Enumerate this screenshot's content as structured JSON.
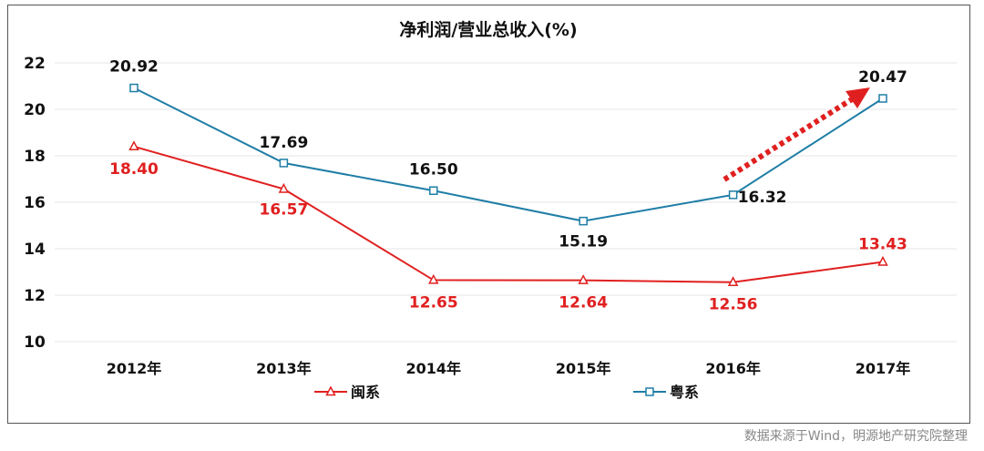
{
  "chart_data": {
    "type": "line",
    "title": "净利润/营业总收入(%)",
    "categories": [
      "2012年",
      "2013年",
      "2014年",
      "2015年",
      "2016年",
      "2017年"
    ],
    "ylim": [
      10,
      22
    ],
    "yticks": [
      10,
      12,
      14,
      16,
      18,
      20,
      22
    ],
    "grid": true,
    "legend_position": "bottom",
    "series": [
      {
        "name": "闽系",
        "color": "#e02020",
        "marker": "triangle",
        "values": [
          18.4,
          16.57,
          12.65,
          12.64,
          12.56,
          13.43
        ],
        "labels": [
          "18.40",
          "16.57",
          "12.65",
          "12.64",
          "12.56",
          "13.43"
        ]
      },
      {
        "name": "粤系",
        "color": "#1f7ea6",
        "marker": "square",
        "values": [
          20.92,
          17.69,
          16.5,
          15.19,
          16.32,
          20.47
        ],
        "labels": [
          "20.92",
          "17.69",
          "16.50",
          "15.19",
          "16.32",
          "20.47"
        ]
      }
    ],
    "annotation": {
      "type": "dotted-arrow",
      "color": "#e02020",
      "from_category": "2016年",
      "to_category": "2017年"
    }
  },
  "source": "数据来源于Wind，明源地产研究院整理"
}
